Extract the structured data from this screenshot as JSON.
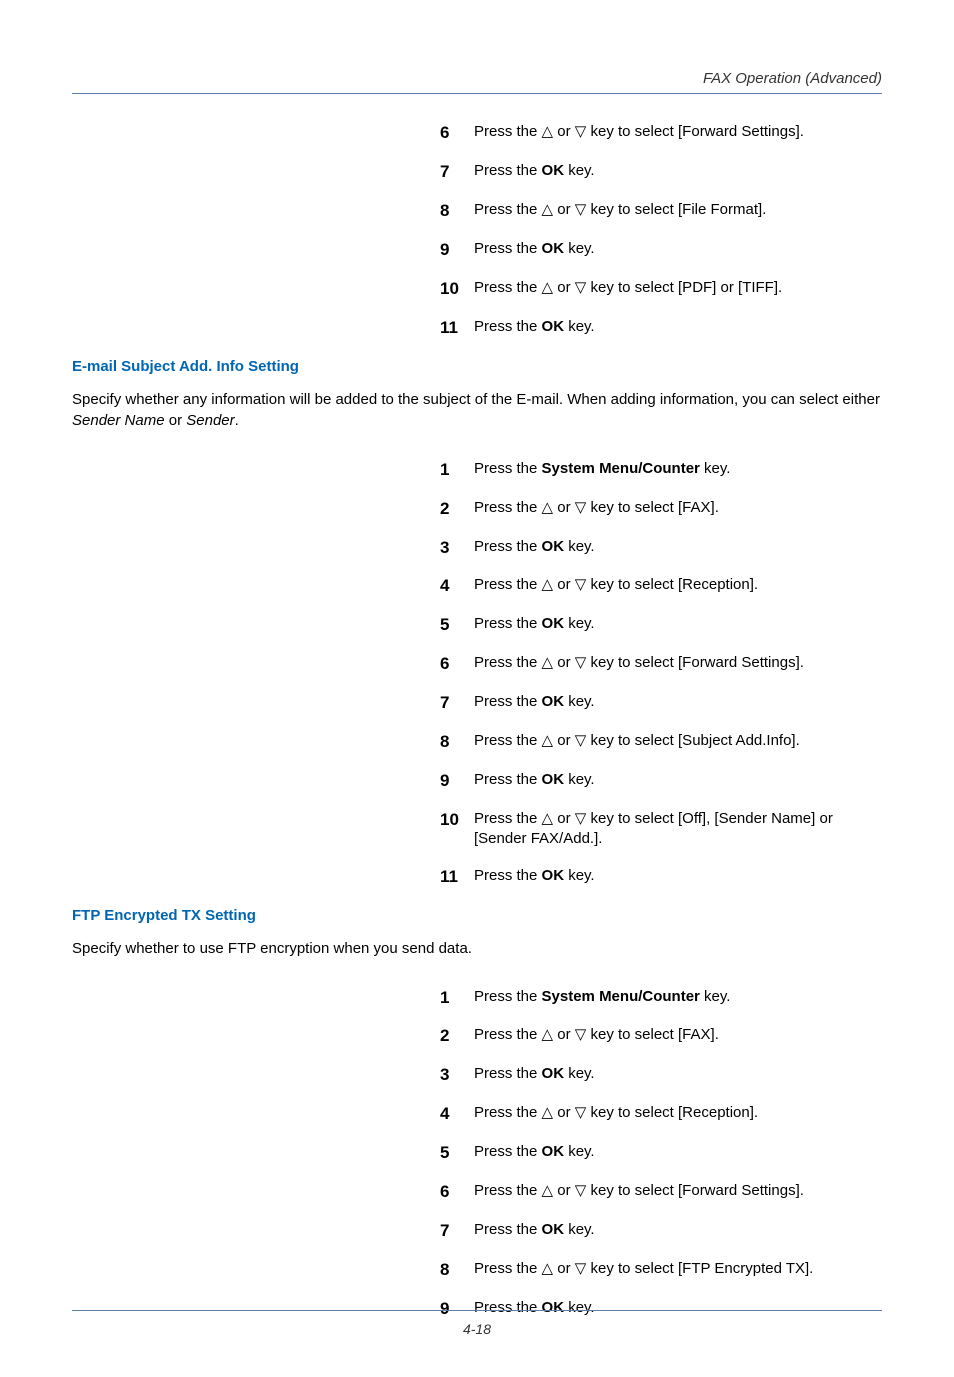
{
  "header": {
    "title": "FAX Operation (Advanced)"
  },
  "colors": {
    "rule": "#5b7fa6",
    "heading": "#0066b3",
    "text": "#000000"
  },
  "typography": {
    "body_fontsize": 15,
    "stepnum_fontsize": 17,
    "footer_fontsize": 14
  },
  "footer": {
    "page": "4-18"
  },
  "glyphs": {
    "up": "△",
    "down": "▽"
  },
  "strings": {
    "press_the": "Press the ",
    "ok": "OK",
    "system_menu": "System Menu/Counter",
    "key": " key.",
    "key_to_select_fwd": " key to select [Forward Settings].",
    "key_to_select_fileformat": " key to select [File Format].",
    "key_to_select_pdf_tiff": " key to select [PDF] or [TIFF].",
    "key_to_select_fax": " key to select [FAX].",
    "key_to_select_reception": " key to select [Reception].",
    "key_to_select_subject": " key to select [Subject Add.Info].",
    "key_to_select_off_sender": " key to select [Off], [Sender Name] or [Sender FAX/Add.].",
    "key_to_select_ftp": " key to select [FTP Encrypted TX].",
    "or": " or "
  },
  "section1": {
    "steps": [
      {
        "n": "6",
        "type": "arrow",
        "tail": "key_to_select_fwd"
      },
      {
        "n": "7",
        "type": "ok"
      },
      {
        "n": "8",
        "type": "arrow",
        "tail": "key_to_select_fileformat"
      },
      {
        "n": "9",
        "type": "ok"
      },
      {
        "n": "10",
        "type": "arrow",
        "tail": "key_to_select_pdf_tiff"
      },
      {
        "n": "11",
        "type": "ok"
      }
    ]
  },
  "section2": {
    "title": "E-mail Subject Add. Info Setting",
    "body_pre": "Specify whether any information will be added to the subject of the E-mail. When adding information, you can select either ",
    "body_em1": "Sender Name",
    "body_mid": " or ",
    "body_em2": "Sender",
    "body_post": ".",
    "steps": [
      {
        "n": "1",
        "type": "sysmenu"
      },
      {
        "n": "2",
        "type": "arrow",
        "tail": "key_to_select_fax"
      },
      {
        "n": "3",
        "type": "ok"
      },
      {
        "n": "4",
        "type": "arrow",
        "tail": "key_to_select_reception"
      },
      {
        "n": "5",
        "type": "ok"
      },
      {
        "n": "6",
        "type": "arrow",
        "tail": "key_to_select_fwd"
      },
      {
        "n": "7",
        "type": "ok"
      },
      {
        "n": "8",
        "type": "arrow",
        "tail": "key_to_select_subject"
      },
      {
        "n": "9",
        "type": "ok"
      },
      {
        "n": "10",
        "type": "arrow",
        "tail": "key_to_select_off_sender"
      },
      {
        "n": "11",
        "type": "ok"
      }
    ]
  },
  "section3": {
    "title": "FTP Encrypted TX Setting",
    "body": "Specify whether to use FTP encryption when you send data.",
    "steps": [
      {
        "n": "1",
        "type": "sysmenu"
      },
      {
        "n": "2",
        "type": "arrow",
        "tail": "key_to_select_fax"
      },
      {
        "n": "3",
        "type": "ok"
      },
      {
        "n": "4",
        "type": "arrow",
        "tail": "key_to_select_reception"
      },
      {
        "n": "5",
        "type": "ok"
      },
      {
        "n": "6",
        "type": "arrow",
        "tail": "key_to_select_fwd"
      },
      {
        "n": "7",
        "type": "ok"
      },
      {
        "n": "8",
        "type": "arrow",
        "tail": "key_to_select_ftp"
      },
      {
        "n": "9",
        "type": "ok"
      }
    ]
  }
}
